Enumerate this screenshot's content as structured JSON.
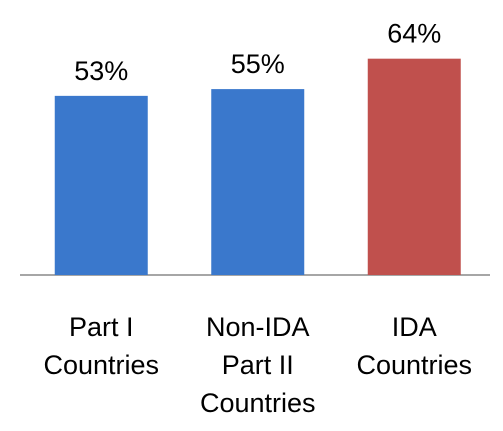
{
  "chart_data": {
    "type": "bar",
    "categories": [
      [
        "Part I",
        "Countries"
      ],
      [
        "Non-IDA",
        "Part II",
        "Countries"
      ],
      [
        "IDA",
        "Countries"
      ]
    ],
    "values": [
      53,
      55,
      64
    ],
    "value_labels": [
      "53%",
      "55%",
      "64%"
    ],
    "colors": [
      "#3a78cc",
      "#3a78cc",
      "#c0504d"
    ]
  }
}
